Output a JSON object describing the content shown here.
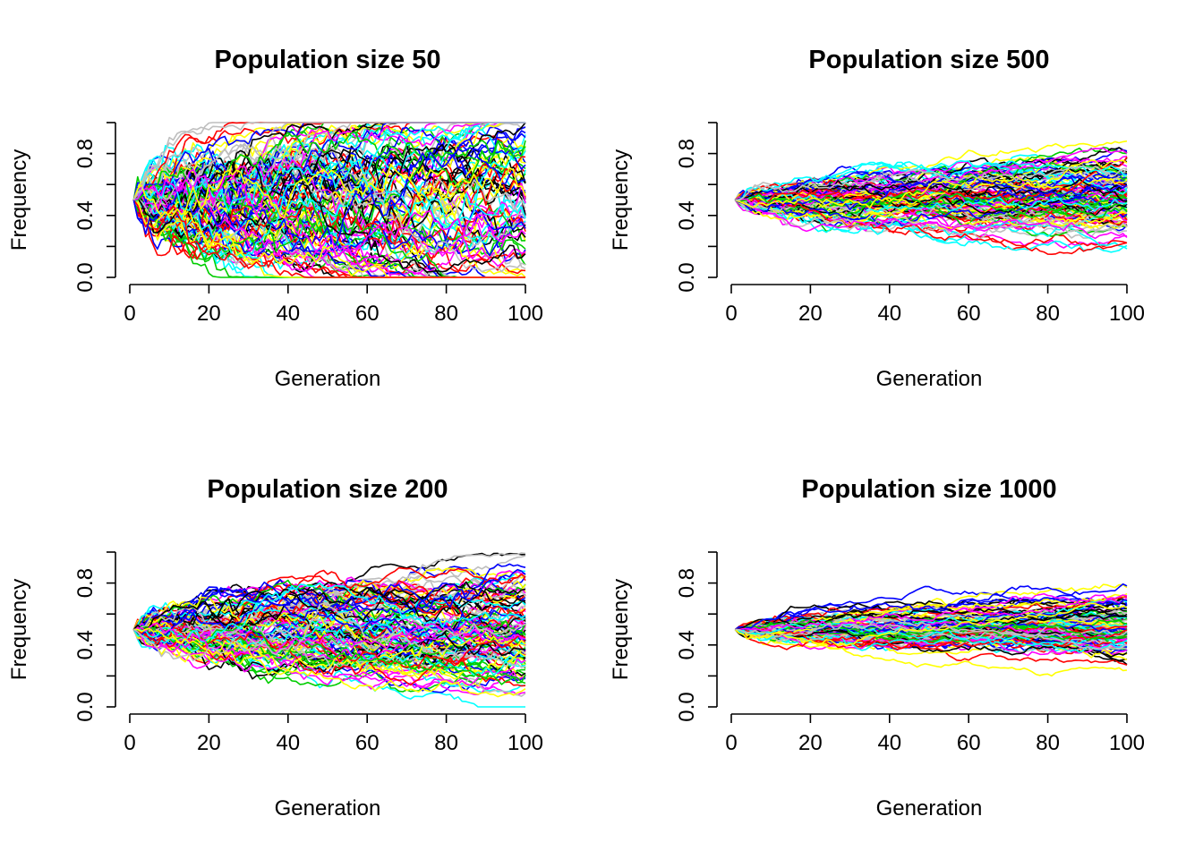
{
  "chart_data": [
    {
      "type": "line",
      "title": "Population size 50",
      "xlabel": "Generation",
      "ylabel": "Frequency",
      "xlim": [
        0,
        100
      ],
      "ylim": [
        0,
        1
      ],
      "xticks": [
        "0",
        "20",
        "40",
        "60",
        "80",
        "100"
      ],
      "yticks": [
        "0.0",
        "0.4",
        "0.8"
      ],
      "start_value": 0.5,
      "n_replicates": 120,
      "spread_at_end": [
        0.0,
        1.0
      ],
      "grid": false,
      "legend": "none",
      "colors": [
        "#000000",
        "#FF0000",
        "#00CD00",
        "#0000FF",
        "#00FFFF",
        "#FF00FF",
        "#FFFF00",
        "#BEBEBE"
      ]
    },
    {
      "type": "line",
      "title": "Population size 500",
      "xlabel": "Generation",
      "ylabel": "Frequency",
      "xlim": [
        0,
        100
      ],
      "ylim": [
        0,
        1
      ],
      "xticks": [
        "0",
        "20",
        "40",
        "60",
        "80",
        "100"
      ],
      "yticks": [
        "0.0",
        "0.4",
        "0.8"
      ],
      "start_value": 0.5,
      "n_replicates": 120,
      "spread_at_end": [
        0.2,
        0.9
      ],
      "grid": false,
      "legend": "none",
      "colors": [
        "#000000",
        "#FF0000",
        "#00CD00",
        "#0000FF",
        "#00FFFF",
        "#FF00FF",
        "#FFFF00",
        "#BEBEBE"
      ]
    },
    {
      "type": "line",
      "title": "Population size 200",
      "xlabel": "Generation",
      "ylabel": "Frequency",
      "xlim": [
        0,
        100
      ],
      "ylim": [
        0,
        1
      ],
      "xticks": [
        "0",
        "20",
        "40",
        "60",
        "80",
        "100"
      ],
      "yticks": [
        "0.0",
        "0.4",
        "0.8"
      ],
      "start_value": 0.5,
      "n_replicates": 120,
      "spread_at_end": [
        0.02,
        0.98
      ],
      "grid": false,
      "legend": "none",
      "colors": [
        "#000000",
        "#FF0000",
        "#00CD00",
        "#0000FF",
        "#00FFFF",
        "#FF00FF",
        "#FFFF00",
        "#BEBEBE"
      ]
    },
    {
      "type": "line",
      "title": "Population size 1000",
      "xlabel": "Generation",
      "ylabel": "Frequency",
      "xlim": [
        0,
        100
      ],
      "ylim": [
        0,
        1
      ],
      "xticks": [
        "0",
        "20",
        "40",
        "60",
        "80",
        "100"
      ],
      "yticks": [
        "0.0",
        "0.4",
        "0.8"
      ],
      "start_value": 0.5,
      "n_replicates": 120,
      "spread_at_end": [
        0.17,
        0.8
      ],
      "grid": false,
      "legend": "none",
      "colors": [
        "#000000",
        "#FF0000",
        "#00CD00",
        "#0000FF",
        "#00FFFF",
        "#FF00FF",
        "#FFFF00",
        "#BEBEBE"
      ]
    }
  ]
}
